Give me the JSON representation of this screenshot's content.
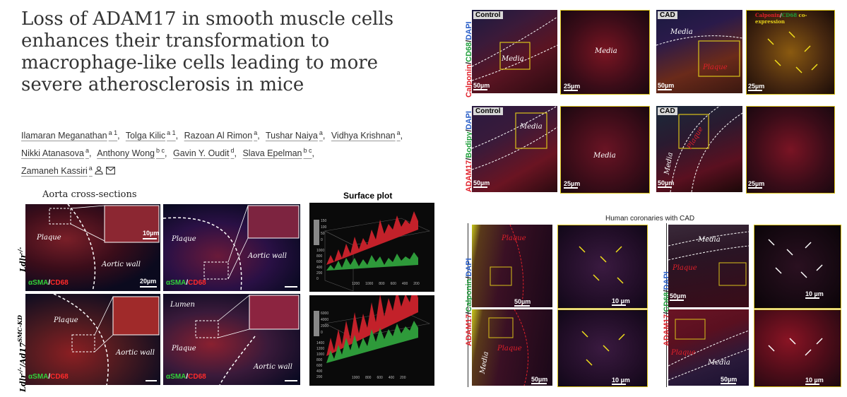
{
  "paper": {
    "title": "Loss of ADAM17 in smooth muscle cells enhances their transformation to macrophage-like cells leading to more severe atherosclerosis in mice",
    "authors": [
      {
        "name": "Ilamaran Meganathan",
        "aff": "a 1"
      },
      {
        "name": "Tolga Kilic",
        "aff": "a 1"
      },
      {
        "name": "Razoan Al Rimon",
        "aff": "a"
      },
      {
        "name": "Tushar Naiya",
        "aff": "a"
      },
      {
        "name": "Vidhya Krishnan",
        "aff": "a"
      },
      {
        "name": "Nikki Atanasova",
        "aff": "a"
      },
      {
        "name": "Anthony Wong",
        "aff": "b c"
      },
      {
        "name": "Gavin Y. Oudit",
        "aff": "d"
      },
      {
        "name": "Slava Epelman",
        "aff": "b c"
      },
      {
        "name": "Zamaneh Kassiri",
        "aff": "a"
      }
    ]
  },
  "left_figure": {
    "section_title": "Aorta cross-sections",
    "surface_title": "Surface plot",
    "row_labels": [
      "Ldlr",
      "-/-",
      "Ldlr",
      "-/-",
      "/Ad17",
      "SMC-KD"
    ],
    "stain": {
      "a": "αSMA",
      "sep": "/",
      "b": "CD68"
    },
    "labels": {
      "plaque": "Plaque",
      "aortic_wall": "Aortic wall",
      "lumen": "Lumen"
    },
    "scale_10": "10µm",
    "scale_20": "20µm",
    "surface_ticks_top": [
      "150",
      "100",
      "50",
      "0",
      "1000",
      "800",
      "600",
      "400",
      "200",
      "0",
      "1200",
      "1000",
      "800",
      "600",
      "400",
      "200"
    ],
    "surface_ticks_bottom": [
      "6000",
      "4000",
      "2000",
      "0",
      "1400",
      "1200",
      "1000",
      "800",
      "600",
      "400",
      "200",
      "1000",
      "800",
      "600",
      "400",
      "200"
    ]
  },
  "right_top": {
    "row1_label": {
      "a": "Calponin",
      "s1": "/",
      "b": "CD68",
      "s2": "/",
      "c": "DAPI"
    },
    "row2_label": {
      "a": "ADAM17",
      "s1": "/",
      "b": "Bodipy",
      "s2": "/",
      "c": "DAPI"
    },
    "control": "Control",
    "cad": "CAD",
    "media": "Media",
    "plaque": "Plaque",
    "coexp": {
      "a": "Calponin",
      "s1": "/",
      "b": "CD68",
      "c": " co-expression"
    },
    "s50": "50µm",
    "s25": "25µm"
  },
  "right_bottom": {
    "title": "Human coronaries with CAD",
    "left_label": {
      "a": "ADAM17",
      "s1": "/",
      "b": "Calponin",
      "s2": "/",
      "c": "DAPI"
    },
    "right_label": {
      "a": "ADAM17",
      "s1": "/",
      "b": "CD68",
      "s2": "/",
      "c": "DAPI"
    },
    "plaque": "Plaque",
    "media": "Media",
    "s50": "50µm",
    "s10": "10 µm"
  }
}
